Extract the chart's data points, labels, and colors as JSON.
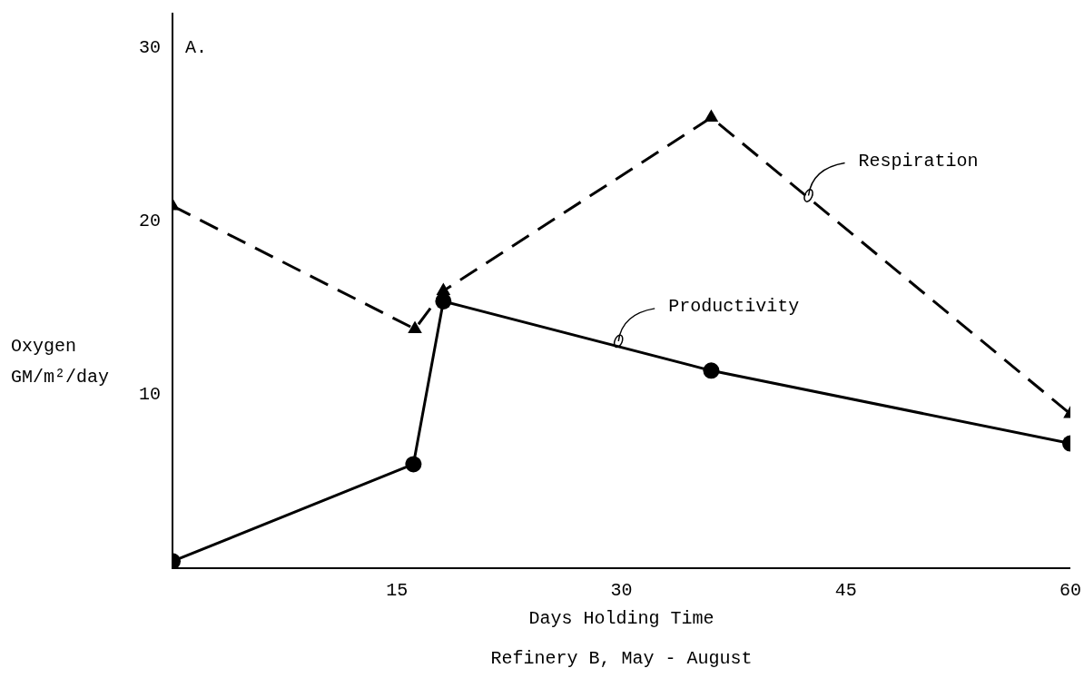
{
  "chart_data": {
    "type": "line",
    "xlabel": "Days Holding Time",
    "ylabel": "Oxygen GM/m²/day",
    "xlim": [
      0,
      60
    ],
    "xticks": [
      15,
      30,
      45,
      60
    ],
    "ylim": [
      0,
      32
    ],
    "yticks": [
      10,
      20,
      30
    ],
    "grid": false,
    "legend": false,
    "series": [
      {
        "color": "#000000",
        "marker": "triangle",
        "line_style": "dashed",
        "x": [
          0,
          16.2,
          18.1,
          36,
          60
        ],
        "values": [
          20.9,
          13.8,
          16.0,
          26.0,
          8.9
        ]
      },
      {
        "color": "#000000",
        "marker": "circle",
        "line_style": "solid",
        "x": [
          0,
          16.1,
          18.1,
          36,
          60
        ],
        "values": [
          0.4,
          6.0,
          15.4,
          11.4,
          7.2
        ]
      }
    ],
    "annotations": [
      "A.",
      {
        "text": "Respiration",
        "x": 42.5,
        "y": 21.5
      },
      {
        "text": "Productivity",
        "x": 29.8,
        "y": 13.1
      },
      "Refinery B, May - August"
    ]
  }
}
